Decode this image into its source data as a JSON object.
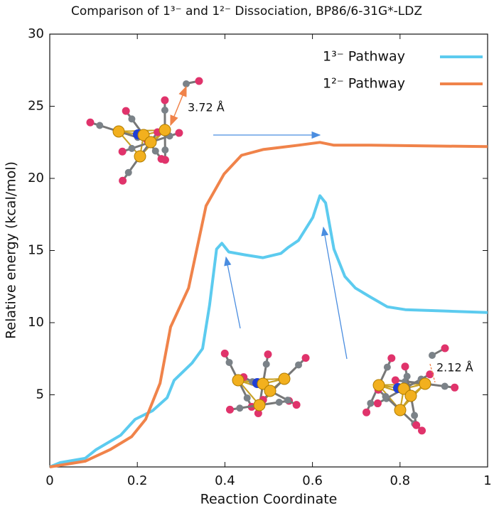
{
  "chart_data": {
    "type": "line",
    "title": "Comparison of 1³⁻ and 1²⁻ Dissociation, BP86/6-31G*-LDZ",
    "x_label": "Reaction Coordinate",
    "y_label": "Relative energy (kcal/mol)",
    "xlim": [
      0,
      1
    ],
    "ylim": [
      0,
      30
    ],
    "xticks": [
      0,
      0.2,
      0.4,
      0.6,
      0.8,
      1
    ],
    "yticks": [
      5,
      10,
      15,
      20,
      25,
      30
    ],
    "grid": false,
    "legend": "upper right",
    "annotations": [
      "3.72 Å",
      "2.12 Å"
    ],
    "series": [
      {
        "name": "1³⁻ Pathway",
        "color": "#5ccbef",
        "x": [
          0,
          0.024,
          0.081,
          0.106,
          0.162,
          0.195,
          0.235,
          0.268,
          0.284,
          0.325,
          0.349,
          0.365,
          0.381,
          0.393,
          0.409,
          0.446,
          0.487,
          0.528,
          0.544,
          0.568,
          0.601,
          0.617,
          0.63,
          0.649,
          0.674,
          0.698,
          0.731,
          0.771,
          0.812,
          0.909,
          1
        ],
        "values": [
          0,
          0.3,
          0.6,
          1.2,
          2.2,
          3.3,
          3.9,
          4.8,
          6.0,
          7.2,
          8.2,
          11.2,
          15.1,
          15.5,
          14.9,
          14.7,
          14.5,
          14.8,
          15.2,
          15.7,
          17.3,
          18.8,
          18.3,
          15.1,
          13.2,
          12.4,
          11.8,
          11.1,
          10.9,
          10.8,
          10.7
        ]
      },
      {
        "name": "1²⁻ Pathway",
        "color": "#f0834a",
        "x": [
          0,
          0.081,
          0.138,
          0.187,
          0.219,
          0.252,
          0.276,
          0.317,
          0.357,
          0.398,
          0.438,
          0.487,
          0.568,
          0.617,
          0.649,
          0.731,
          1
        ],
        "values": [
          0,
          0.4,
          1.2,
          2.1,
          3.3,
          5.8,
          9.7,
          12.4,
          18.1,
          20.3,
          21.6,
          22.0,
          22.3,
          22.5,
          22.3,
          22.3,
          22.2
        ]
      }
    ]
  }
}
